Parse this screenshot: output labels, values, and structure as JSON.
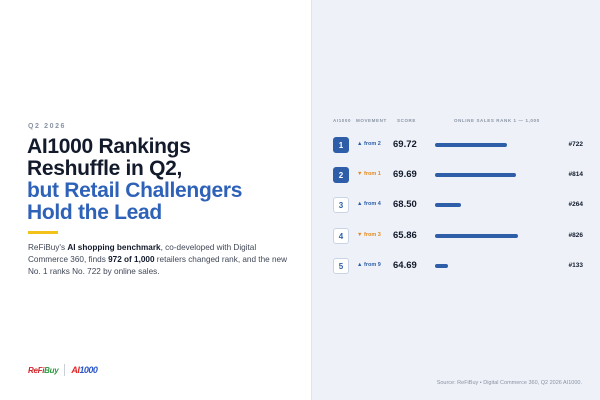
{
  "left": {
    "eyebrow": "Q2 2026",
    "headline_line1": "AI1000 Rankings",
    "headline_line2": "Reshuffle in Q2,",
    "headline_line3": "but Retail Challengers",
    "headline_line4": "Hold the Lead",
    "desc_pre": "ReFiBuy's ",
    "desc_bold1": "AI shopping benchmark",
    "desc_mid": ", co-developed with Digital Commerce 360, finds ",
    "desc_bold2": "972 of 1,000",
    "desc_post": " retailers changed rank, and the new No. 1 ranks No. 722 by online sales.",
    "logo1_a": "ReFi",
    "logo1_b": "Buy",
    "logo2_a": "AI",
    "logo2_b": "1000"
  },
  "table": {
    "col_rank": "AI1000",
    "col_movement": "MOVEMENT",
    "col_score": "SCORE",
    "col_sales": "ONLINE SALES RANK  1 — 1,000",
    "max_sales_rank": 1000,
    "rows": [
      {
        "rank": "1",
        "style": "filled",
        "dir": "up",
        "arrow": "▲",
        "movement": "from 2",
        "score": "69.72",
        "sales_rank_value": 722,
        "sales_rank": "#722"
      },
      {
        "rank": "2",
        "style": "filled",
        "dir": "down",
        "arrow": "▼",
        "movement": "from 1",
        "score": "69.69",
        "sales_rank_value": 814,
        "sales_rank": "#814"
      },
      {
        "rank": "3",
        "style": "outline",
        "dir": "up",
        "arrow": "▲",
        "movement": "from 4",
        "score": "68.50",
        "sales_rank_value": 264,
        "sales_rank": "#264"
      },
      {
        "rank": "4",
        "style": "outline",
        "dir": "down",
        "arrow": "▼",
        "movement": "from 3",
        "score": "65.86",
        "sales_rank_value": 826,
        "sales_rank": "#826"
      },
      {
        "rank": "5",
        "style": "outline",
        "dir": "up",
        "arrow": "▲",
        "movement": "from 9",
        "score": "64.69",
        "sales_rank_value": 133,
        "sales_rank": "#133"
      }
    ]
  },
  "source": "Source: ReFiBuy • Digital Commerce 360, Q2 2026 AI1000.",
  "colors": {
    "accent_blue": "#2e5ea8",
    "accent_yellow": "#f2c21a",
    "down_orange": "#e58a1f",
    "panel_bg": "#eef2f8"
  }
}
